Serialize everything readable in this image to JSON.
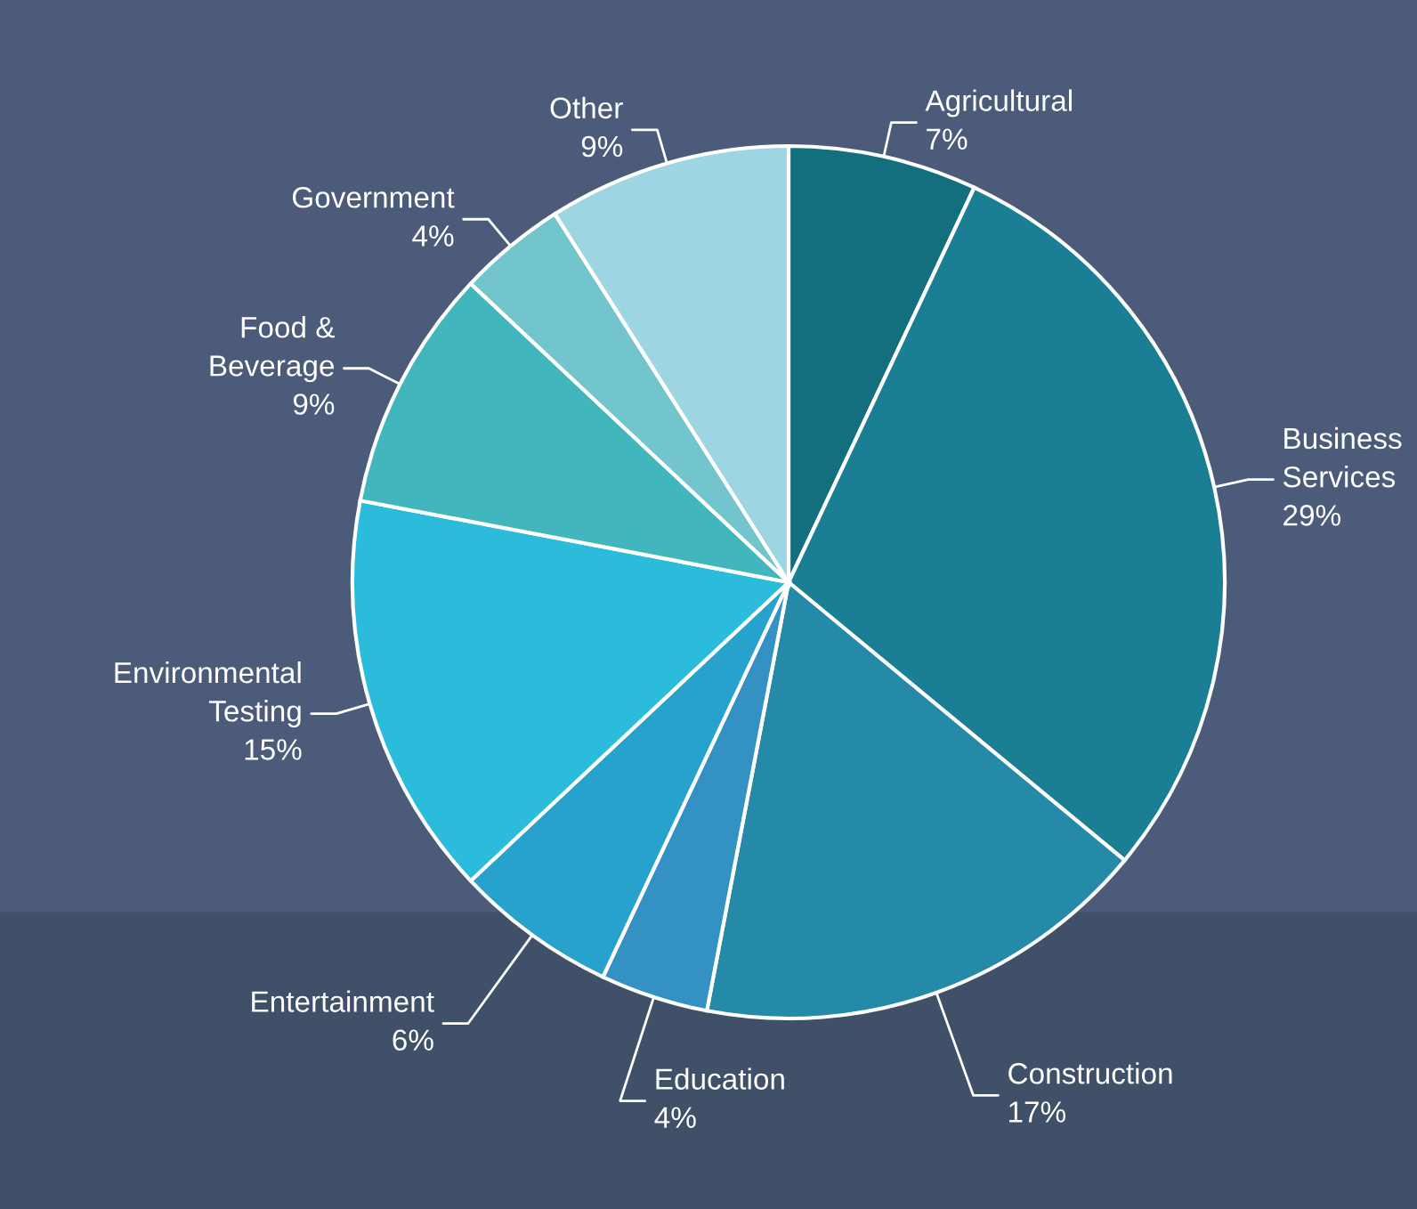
{
  "chart_data": {
    "type": "pie",
    "categories": [
      "Agricultural",
      "Business Services",
      "Construction",
      "Education",
      "Entertainment",
      "Environmental Testing",
      "Food & Beverage",
      "Government",
      "Other"
    ],
    "values": [
      7,
      29,
      17,
      4,
      6,
      15,
      9,
      4,
      9
    ],
    "colors": [
      "#136f7e",
      "#1a7f94",
      "#2589a8",
      "#3391c4",
      "#27a2cc",
      "#2cbcdb",
      "#42b6bd",
      "#72c5cc",
      "#9dd6e2"
    ],
    "value_labels": [
      "7%",
      "29%",
      "17%",
      "4%",
      "6%",
      "15%",
      "9%",
      "4%",
      "9%"
    ]
  }
}
